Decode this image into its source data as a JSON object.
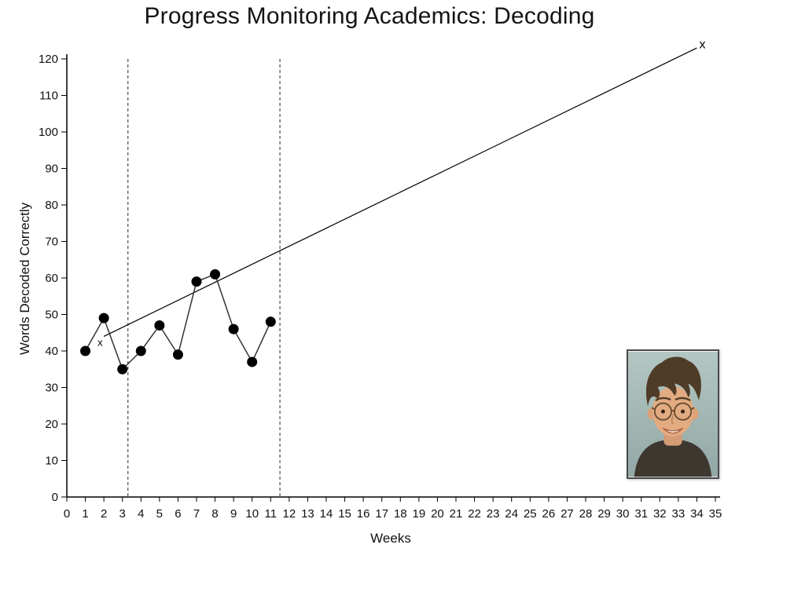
{
  "title": "Progress Monitoring Academics: Decoding",
  "chart_data": {
    "type": "line",
    "title": "Progress Monitoring Academics: Decoding",
    "xlabel": "Weeks",
    "ylabel": "Words Decoded Correctly",
    "xlim": [
      0,
      35
    ],
    "ylim": [
      0,
      120
    ],
    "x_tick_step": 1,
    "y_tick_step": 10,
    "grid": false,
    "legend": "none",
    "series": [
      {
        "name": "words-decoded-correctly",
        "marker": "filled-circle",
        "x": [
          1,
          2,
          3,
          4,
          5,
          6,
          7,
          8,
          9,
          10,
          11
        ],
        "values": [
          40,
          49,
          35,
          40,
          47,
          39,
          59,
          61,
          46,
          37,
          48
        ]
      }
    ],
    "aim_line": {
      "name": "goal-aim-line",
      "points": [
        [
          2,
          44
        ],
        [
          34,
          123
        ]
      ],
      "marker_labels": [
        {
          "text": "x",
          "x": 1.8,
          "y": 42.5,
          "size": 13
        },
        {
          "text": "x",
          "x": 34.3,
          "y": 124.0,
          "size": 16
        }
      ]
    },
    "phase_lines_x": [
      3.3,
      11.5
    ]
  }
}
